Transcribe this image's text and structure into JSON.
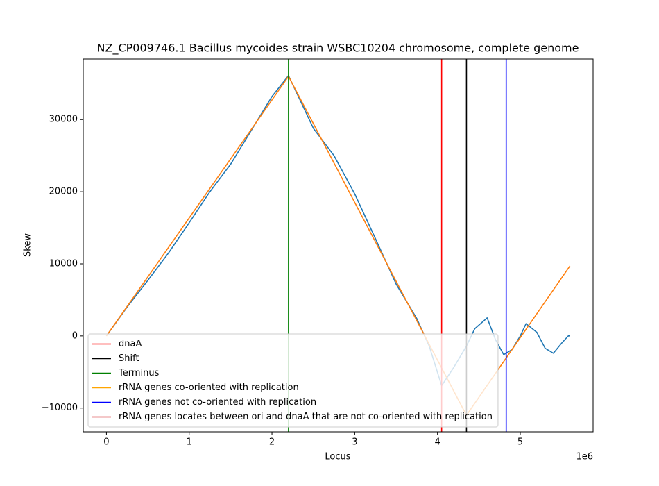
{
  "chart_data": {
    "type": "line",
    "title": "NZ_CP009746.1 Bacillus mycoides strain WSBC10204 chromosome, complete genome",
    "x_label": "Locus",
    "y_label": "Skew",
    "x_offset_label": "1e6",
    "xlim": [
      -280000,
      5880000
    ],
    "ylim": [
      -13300,
      38400
    ],
    "xticks": [
      {
        "value": 0,
        "label": "0"
      },
      {
        "value": 1000000,
        "label": "1"
      },
      {
        "value": 2000000,
        "label": "2"
      },
      {
        "value": 3000000,
        "label": "3"
      },
      {
        "value": 4000000,
        "label": "4"
      },
      {
        "value": 5000000,
        "label": "5"
      }
    ],
    "yticks": [
      {
        "value": -10000,
        "label": "−10000"
      },
      0,
      10000,
      20000,
      30000
    ],
    "series": [
      {
        "color": "#1f77b4",
        "x": [
          0,
          250000,
          500000,
          750000,
          1000000,
          1250000,
          1500000,
          1750000,
          2000000,
          2200000,
          2500000,
          2750000,
          3000000,
          3250000,
          3500000,
          3750000,
          3900000,
          4050000,
          4200000,
          4350000,
          4450000,
          4600000,
          4700000,
          4800000,
          4900000,
          5000000,
          5070000,
          5200000,
          5300000,
          5400000,
          5500000,
          5580000,
          5600000
        ],
        "values": [
          0,
          4000,
          7700,
          11500,
          15700,
          20000,
          23800,
          28500,
          33200,
          36100,
          28800,
          25000,
          19700,
          13500,
          7200,
          2400,
          -1400,
          -6900,
          -4300,
          -1400,
          1000,
          2500,
          -500,
          -2600,
          -1900,
          0,
          1700,
          500,
          -1700,
          -2400,
          -1000,
          0,
          0
        ]
      },
      {
        "color": "#ff7f0e",
        "x": [
          0,
          2200000,
          4350000,
          5600000
        ],
        "values": [
          0,
          36000,
          -11000,
          9700
        ]
      }
    ],
    "vlines": [
      {
        "x": 4050000,
        "color": "#ff0000"
      },
      {
        "x": 4350000,
        "color": "#000000"
      },
      {
        "x": 2200000,
        "color": "#008000"
      },
      {
        "x": 4830000,
        "color": "#0000ff"
      }
    ],
    "legend": {
      "loc": "lower left",
      "entries": [
        {
          "label": "dnaA",
          "color": "#ff0000"
        },
        {
          "label": "Shift",
          "color": "#000000"
        },
        {
          "label": "Terminus",
          "color": "#008000"
        },
        {
          "label": "rRNA genes co-oriented with replication",
          "color": "#ffa500"
        },
        {
          "label": "rRNA genes not co-oriented with replication",
          "color": "#0000ff"
        },
        {
          "label": "rRNA genes locates between ori and dnaA that are not co-oriented with replication",
          "color": "#d62728"
        }
      ]
    }
  }
}
